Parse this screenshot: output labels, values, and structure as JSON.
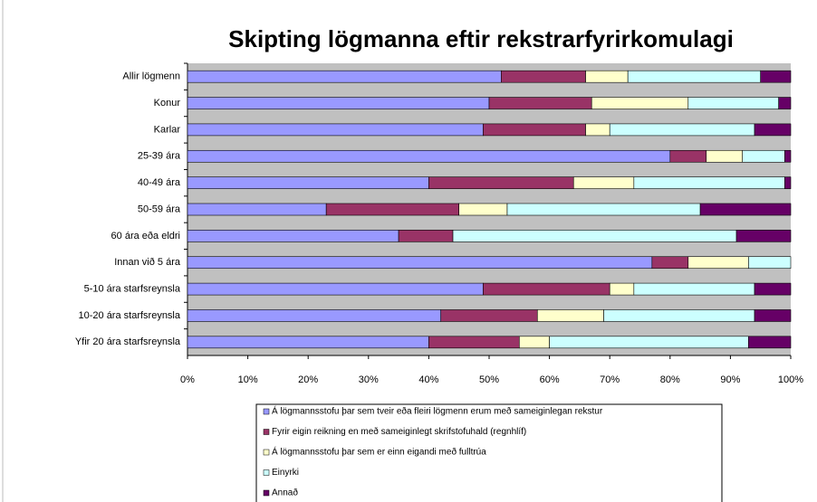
{
  "chart_data": {
    "type": "stacked-bar-horizontal",
    "title": "Skipting lögmanna eftir rekstrarfyrirkomulagi",
    "categories": [
      "Allir lögmenn",
      "Konur",
      "Karlar",
      "25-39 ára",
      "40-49 ára",
      "50-59 ára",
      "60 ára eða eldri",
      "Innan við 5 ára",
      "5-10 ára starfsreynsla",
      "10-20 ára starfsreynsla",
      "Yfir 20 ára starfsreynsla"
    ],
    "series": [
      {
        "name": "Á lögmannsstofu þar sem tveir eða fleiri lögmenn erum með sameiginlegan rekstur",
        "color": "#9999ff",
        "values": [
          52,
          50,
          49,
          80,
          40,
          23,
          35,
          77,
          49,
          42,
          40
        ]
      },
      {
        "name": "Fyrir eigin reikning en með sameiginlegt skrifstofuhald (regnhlíf)",
        "color": "#993366",
        "values": [
          14,
          17,
          17,
          6,
          24,
          22,
          9,
          6,
          21,
          16,
          15
        ]
      },
      {
        "name": "Á lögmannsstofu þar sem er einn eigandi með fulltrúa",
        "color": "#ffffcc",
        "values": [
          7,
          16,
          4,
          6,
          10,
          8,
          0,
          10,
          4,
          11,
          5
        ]
      },
      {
        "name": "Einyrki",
        "color": "#ccffff",
        "values": [
          22,
          15,
          24,
          7,
          25,
          32,
          47,
          7,
          20,
          25,
          33
        ]
      },
      {
        "name": "Annað",
        "color": "#660066",
        "values": [
          5,
          2,
          6,
          1,
          1,
          15,
          9,
          0,
          6,
          6,
          7
        ]
      }
    ],
    "xlim": [
      0,
      100
    ],
    "xticks": [
      {
        "value": 0,
        "label": "0%"
      },
      {
        "value": 10,
        "label": "10%"
      },
      {
        "value": 20,
        "label": "20%"
      },
      {
        "value": 30,
        "label": "30%"
      },
      {
        "value": 40,
        "label": "40%"
      },
      {
        "value": 50,
        "label": "50%"
      },
      {
        "value": 60,
        "label": "60%"
      },
      {
        "value": 70,
        "label": "70%"
      },
      {
        "value": 80,
        "label": "80%"
      },
      {
        "value": 90,
        "label": "90%"
      },
      {
        "value": 100,
        "label": "100%"
      }
    ],
    "grid": false,
    "legend": "bottom"
  }
}
